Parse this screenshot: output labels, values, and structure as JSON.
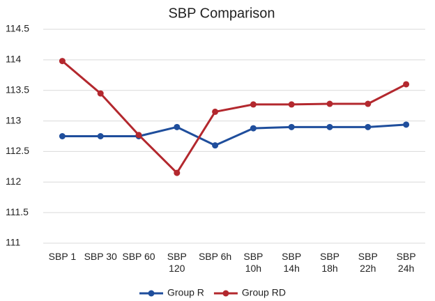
{
  "chart_data": {
    "type": "line",
    "title": "SBP Comparison",
    "categories": [
      "SBP 1",
      "SBP 30",
      "SBP 60",
      "SBP 120",
      "SBP 6h",
      "SBP 10h",
      "SBP 14h",
      "SBP 18h",
      "SBP 22h",
      "SBP 24h"
    ],
    "series": [
      {
        "name": "Group R",
        "color": "#1f4e9c",
        "values": [
          112.75,
          112.75,
          112.75,
          112.9,
          112.6,
          112.88,
          112.9,
          112.9,
          112.9,
          112.94
        ]
      },
      {
        "name": "Group RD",
        "color": "#b3282e",
        "values": [
          113.98,
          113.45,
          112.77,
          112.15,
          113.15,
          113.27,
          113.27,
          113.28,
          113.28,
          113.6
        ]
      }
    ],
    "ylim": [
      111,
      114.5
    ],
    "yticks": [
      111,
      111.5,
      112,
      112.5,
      113,
      113.5,
      114,
      114.5
    ],
    "grid": true,
    "legend": "bottom"
  }
}
